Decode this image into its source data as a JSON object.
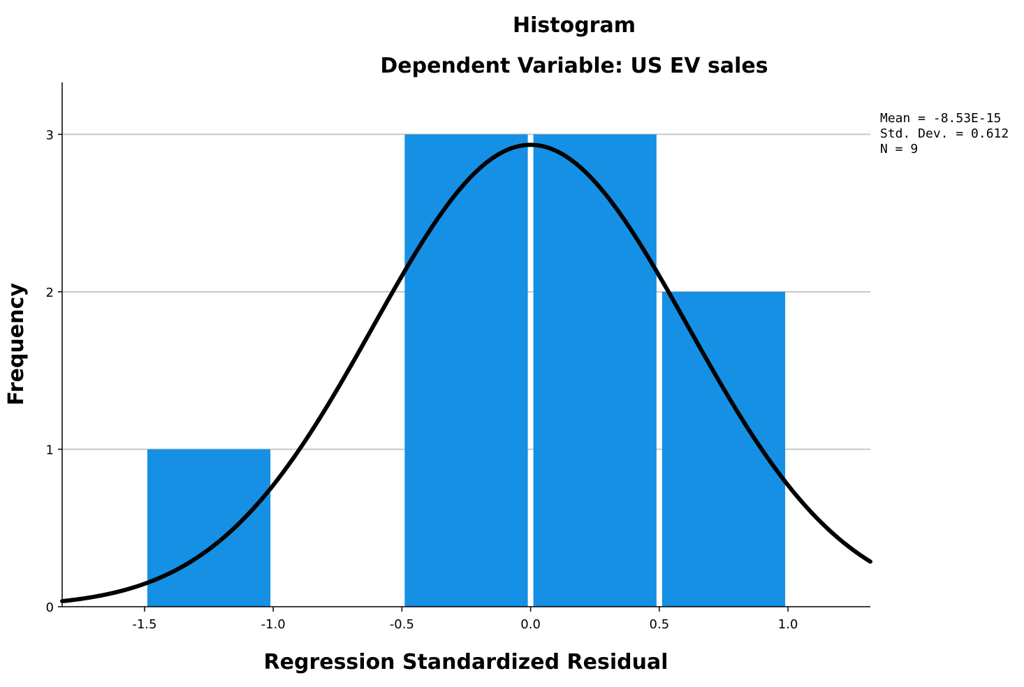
{
  "chart_data": {
    "type": "bar",
    "subtype": "histogram-with-normal-curve",
    "title": "Histogram",
    "subtitle": "Dependent Variable: US EV sales",
    "xlabel": "Regression Standardized Residual",
    "ylabel": "Frequency",
    "xlim": [
      -1.82,
      1.32
    ],
    "ylim": [
      0,
      3.33
    ],
    "x_ticks": [
      -1.5,
      -1.0,
      -0.5,
      0.0,
      0.5,
      1.0
    ],
    "x_tick_labels": [
      "-1.5",
      "-1.0",
      "-0.5",
      "0.0",
      "0.5",
      "1.0"
    ],
    "y_ticks": [
      0,
      1,
      2,
      3
    ],
    "y_tick_labels": [
      "0",
      "1",
      "2",
      "3"
    ],
    "grid": "horizontal",
    "bins": [
      {
        "start": -1.5,
        "end": -1.0,
        "count": 1
      },
      {
        "start": -1.0,
        "end": -0.5,
        "count": 0
      },
      {
        "start": -0.5,
        "end": 0.0,
        "count": 3
      },
      {
        "start": 0.0,
        "end": 0.5,
        "count": 3
      },
      {
        "start": 0.5,
        "end": 1.0,
        "count": 2
      }
    ],
    "bin_width": 0.5,
    "bar_color": "#1590e4",
    "curve_color": "#000000",
    "normal_curve": {
      "mean": -8.53e-15,
      "std": 0.612,
      "n": 9
    },
    "stats_text": [
      "Mean = -8.53E-15",
      "Std. Dev. = 0.612",
      "N = 9"
    ],
    "stats_placement": "top-right"
  }
}
